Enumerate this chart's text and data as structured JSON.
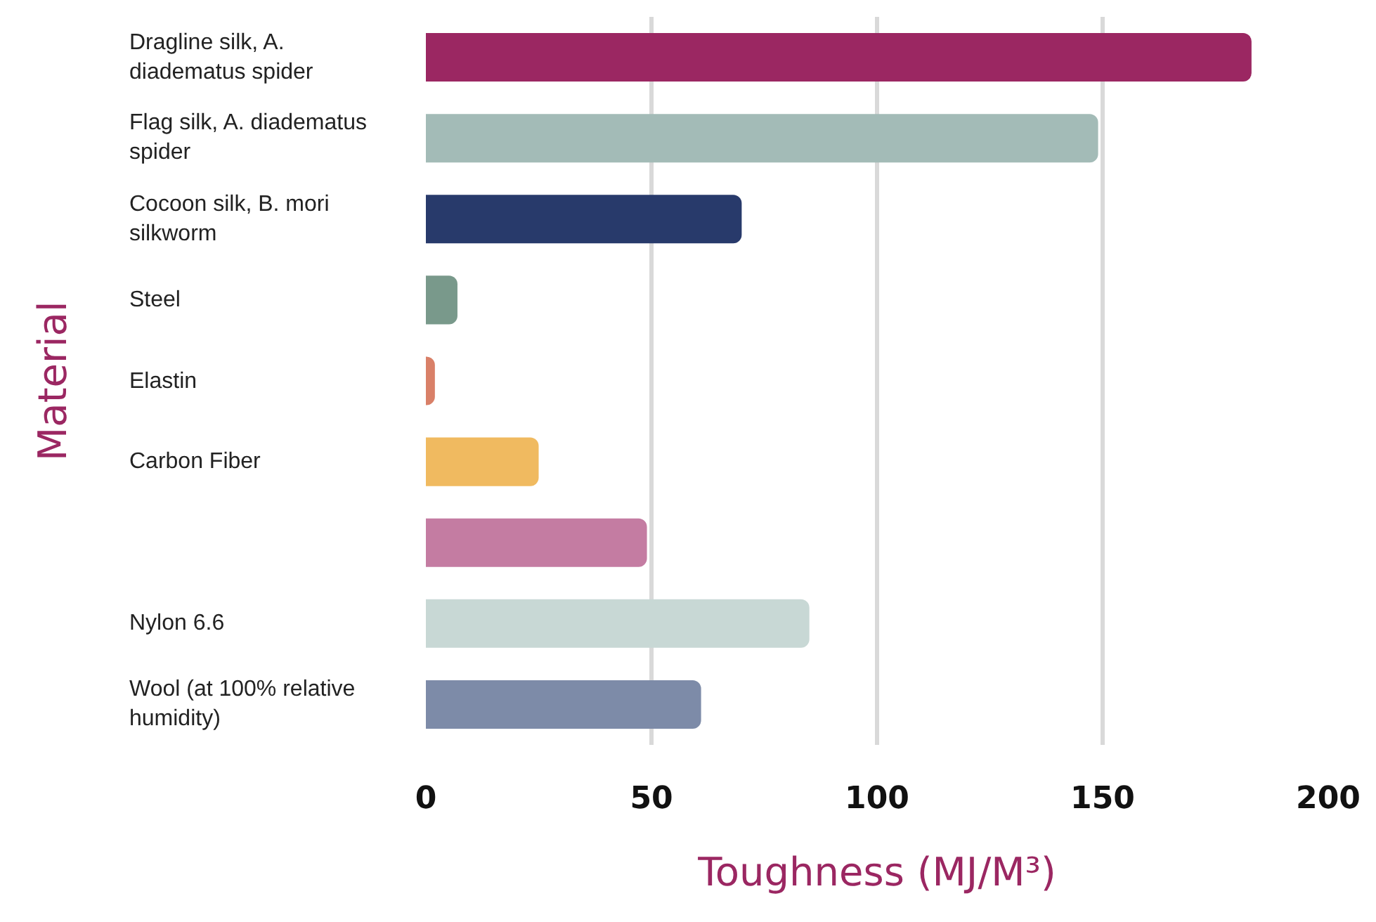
{
  "chart_data": {
    "type": "bar",
    "orientation": "horizontal",
    "xlabel": "Toughness (MJ/M³)",
    "ylabel": "Material",
    "categories": [
      "Dragline silk, A. diadematus spider",
      "Flag silk, A. diadematus spider",
      "Cocoon silk, B. mori silkworm",
      "Steel",
      "Elastin",
      "Carbon Fiber",
      null,
      "Nylon 6.6",
      "Wool (at 100% relative humidity)"
    ],
    "values": [
      183,
      149,
      70,
      7,
      2,
      25,
      49,
      85,
      61
    ],
    "colors": [
      "#9b2762",
      "#a3bbb7",
      "#283a6b",
      "#79998b",
      "#d98068",
      "#f0ba60",
      "#c47ca2",
      "#c8d8d5",
      "#7d8ba8"
    ],
    "xlim": [
      0,
      200
    ],
    "xticks": [
      0,
      50,
      100,
      150,
      200
    ],
    "grid": "x"
  }
}
